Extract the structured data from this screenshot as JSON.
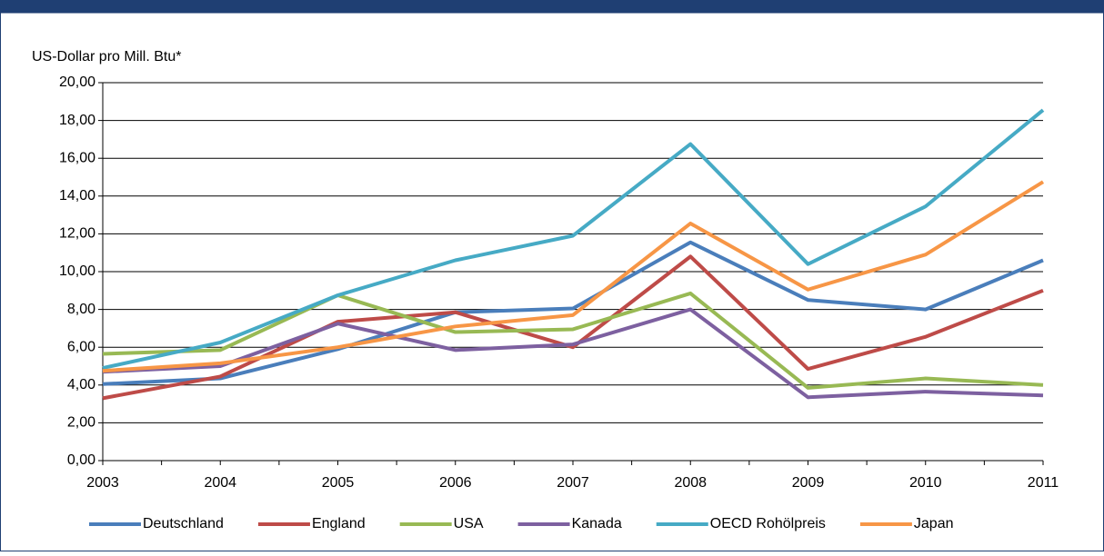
{
  "chart_data": {
    "type": "line",
    "ylabel": "US-Dollar pro Mill. Btu*",
    "categories": [
      "2003",
      "2004",
      "2005",
      "2006",
      "2007",
      "2008",
      "2009",
      "2010",
      "2011"
    ],
    "ylim": [
      0,
      20
    ],
    "yticks": [
      {
        "value": 0,
        "label": "0,00"
      },
      {
        "value": 2,
        "label": "2,00"
      },
      {
        "value": 4,
        "label": "4,00"
      },
      {
        "value": 6,
        "label": "6,00"
      },
      {
        "value": 8,
        "label": "8,00"
      },
      {
        "value": 10,
        "label": "10,00"
      },
      {
        "value": 12,
        "label": "12,00"
      },
      {
        "value": 14,
        "label": "14,00"
      },
      {
        "value": 16,
        "label": "16,00"
      },
      {
        "value": 18,
        "label": "18,00"
      },
      {
        "value": 20,
        "label": "20,00"
      }
    ],
    "grid": true,
    "legend": "bottom",
    "series": [
      {
        "name": "Deutschland",
        "color": "#4a7ebb",
        "values": [
          4.05,
          4.35,
          5.9,
          7.85,
          8.05,
          11.55,
          8.5,
          8.0,
          10.6
        ]
      },
      {
        "name": "England",
        "color": "#be4b48",
        "values": [
          3.3,
          4.45,
          7.35,
          7.85,
          6.0,
          10.8,
          4.85,
          6.55,
          9.0
        ]
      },
      {
        "name": "USA",
        "color": "#98b954",
        "values": [
          5.65,
          5.85,
          8.75,
          6.8,
          6.95,
          8.85,
          3.85,
          4.35,
          4.0
        ]
      },
      {
        "name": "Kanada",
        "color": "#7d60a0",
        "values": [
          4.7,
          5.0,
          7.25,
          5.85,
          6.15,
          8.0,
          3.35,
          3.65,
          3.45
        ]
      },
      {
        "name": "OECD Rohölpreis",
        "color": "#46aac5",
        "values": [
          4.9,
          6.25,
          8.75,
          10.6,
          11.9,
          16.75,
          10.4,
          13.45,
          18.55
        ]
      },
      {
        "name": "Japan",
        "color": "#f79646",
        "values": [
          4.75,
          5.15,
          6.0,
          7.1,
          7.7,
          12.55,
          9.05,
          10.9,
          14.75
        ]
      }
    ]
  }
}
